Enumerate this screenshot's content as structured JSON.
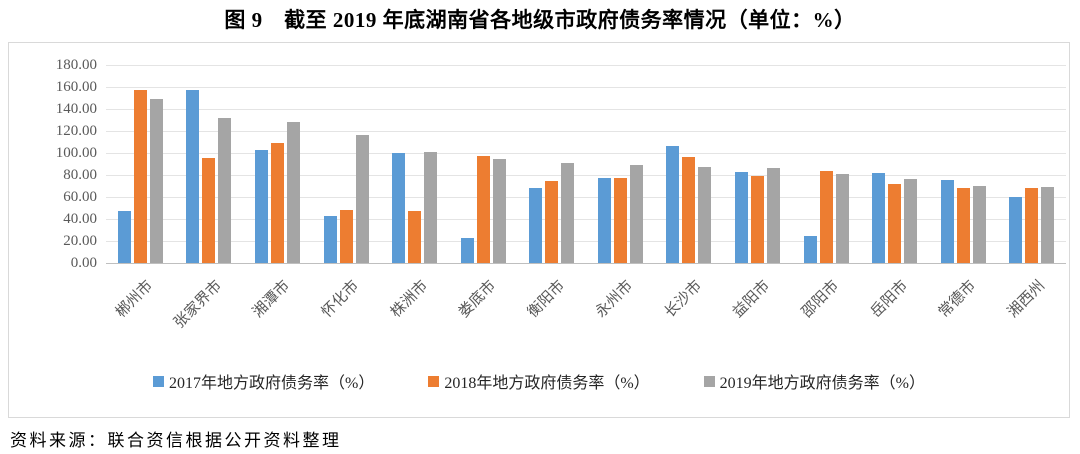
{
  "title": "图 9　截至 2019 年底湖南省各地级市政府债务率情况（单位：%）",
  "source_note": "资料来源：联合资信根据公开资料整理",
  "colors": {
    "series_2017": "#5B9BD5",
    "series_2018": "#ED7D31",
    "series_2019": "#A5A5A5",
    "gridline": "#E4E4E4",
    "axis_line": "#BFBFBF",
    "axis_text": "#595959",
    "chart_border": "#D9D9D9"
  },
  "chart_data": {
    "type": "bar",
    "title": "图 9　截至 2019 年底湖南省各地级市政府债务率情况（单位：%）",
    "categories": [
      "郴州市",
      "张家界市",
      "湘潭市",
      "怀化市",
      "株洲市",
      "娄底市",
      "衡阳市",
      "永州市",
      "长沙市",
      "益阳市",
      "邵阳市",
      "岳阳市",
      "常德市",
      "湘西州"
    ],
    "series": [
      {
        "name": "2017年地方政府债务率（%）",
        "color": "#5B9BD5",
        "values": [
          47.5,
          157.0,
          102.5,
          42.5,
          100.0,
          22.5,
          68.5,
          77.0,
          106.5,
          83.0,
          24.5,
          82.0,
          75.5,
          60.0
        ]
      },
      {
        "name": "2018年地方政府债务率（%）",
        "color": "#ED7D31",
        "values": [
          157.0,
          95.5,
          109.0,
          48.0,
          47.0,
          97.5,
          74.5,
          77.5,
          96.0,
          79.0,
          84.0,
          71.5,
          68.5,
          68.0
        ]
      },
      {
        "name": "2019年地方政府债务率（%）",
        "color": "#A5A5A5",
        "values": [
          149.5,
          132.0,
          128.0,
          116.0,
          100.5,
          95.0,
          91.0,
          89.5,
          87.5,
          86.0,
          81.0,
          76.5,
          70.0,
          69.5
        ]
      }
    ],
    "xlabel": "",
    "ylabel": "",
    "ylim": [
      0,
      180
    ],
    "ytick_step": 20,
    "ytick_labels": [
      "180.00",
      "160.00",
      "140.00",
      "120.00",
      "100.00",
      "80.00",
      "60.00",
      "40.00",
      "20.00",
      "0.00"
    ],
    "grid": true,
    "legend_position": "bottom"
  }
}
